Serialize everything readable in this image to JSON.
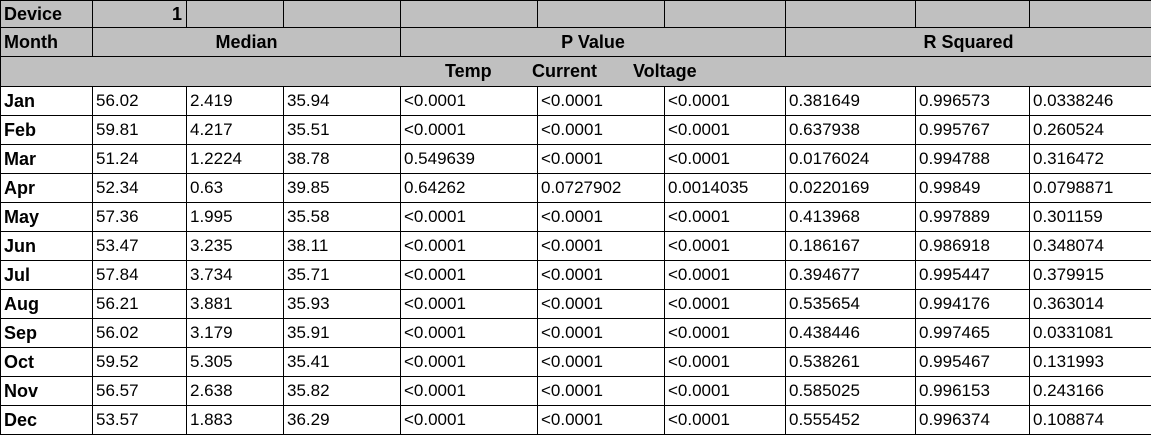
{
  "header": {
    "device_label": "Device",
    "device_value": "1",
    "month_label": "Month",
    "groups": [
      "Median",
      "P Value",
      "R Squared"
    ],
    "subheaders": [
      "Temp",
      "Current",
      "Voltage"
    ]
  },
  "rows": [
    {
      "month": "Jan",
      "values": [
        "56.02",
        "2.419",
        "35.94",
        "<0.0001",
        "<0.0001",
        "<0.0001",
        "0.381649",
        "0.996573",
        "0.0338246"
      ]
    },
    {
      "month": "Feb",
      "values": [
        "59.81",
        "4.217",
        "35.51",
        "<0.0001",
        "<0.0001",
        "<0.0001",
        "0.637938",
        "0.995767",
        "0.260524"
      ]
    },
    {
      "month": "Mar",
      "values": [
        "51.24",
        "1.2224",
        "38.78",
        "0.549639",
        "<0.0001",
        "<0.0001",
        "0.0176024",
        "0.994788",
        "0.316472"
      ]
    },
    {
      "month": "Apr",
      "values": [
        "52.34",
        "0.63",
        "39.85",
        "0.64262",
        "0.0727902",
        "0.0014035",
        "0.0220169",
        "0.99849",
        "0.0798871"
      ]
    },
    {
      "month": "May",
      "values": [
        "57.36",
        "1.995",
        "35.58",
        "<0.0001",
        "<0.0001",
        "<0.0001",
        "0.413968",
        "0.997889",
        "0.301159"
      ]
    },
    {
      "month": "Jun",
      "values": [
        "53.47",
        "3.235",
        "38.11",
        "<0.0001",
        "<0.0001",
        "<0.0001",
        "0.186167",
        "0.986918",
        "0.348074"
      ]
    },
    {
      "month": "Jul",
      "values": [
        "57.84",
        "3.734",
        "35.71",
        "<0.0001",
        "<0.0001",
        "<0.0001",
        "0.394677",
        "0.995447",
        "0.379915"
      ]
    },
    {
      "month": "Aug",
      "values": [
        "56.21",
        "3.881",
        "35.93",
        "<0.0001",
        "<0.0001",
        "<0.0001",
        "0.535654",
        "0.994176",
        "0.363014"
      ]
    },
    {
      "month": "Sep",
      "values": [
        "56.02",
        "3.179",
        "35.91",
        "<0.0001",
        "<0.0001",
        "<0.0001",
        "0.438446",
        "0.997465",
        "0.0331081"
      ]
    },
    {
      "month": "Oct",
      "values": [
        "59.52",
        "5.305",
        "35.41",
        "<0.0001",
        "<0.0001",
        "<0.0001",
        "0.538261",
        "0.995467",
        "0.131993"
      ]
    },
    {
      "month": "Nov",
      "values": [
        "56.57",
        "2.638",
        "35.82",
        "<0.0001",
        "<0.0001",
        "<0.0001",
        "0.585025",
        "0.996153",
        "0.243166"
      ]
    },
    {
      "month": "Dec",
      "values": [
        "53.57",
        "1.883",
        "36.29",
        "<0.0001",
        "<0.0001",
        "<0.0001",
        "0.555452",
        "0.996374",
        "0.108874"
      ]
    }
  ],
  "colors": {
    "header_fill": "#c0c0c0",
    "cell_fill": "#ffffff",
    "border": "#000000"
  }
}
